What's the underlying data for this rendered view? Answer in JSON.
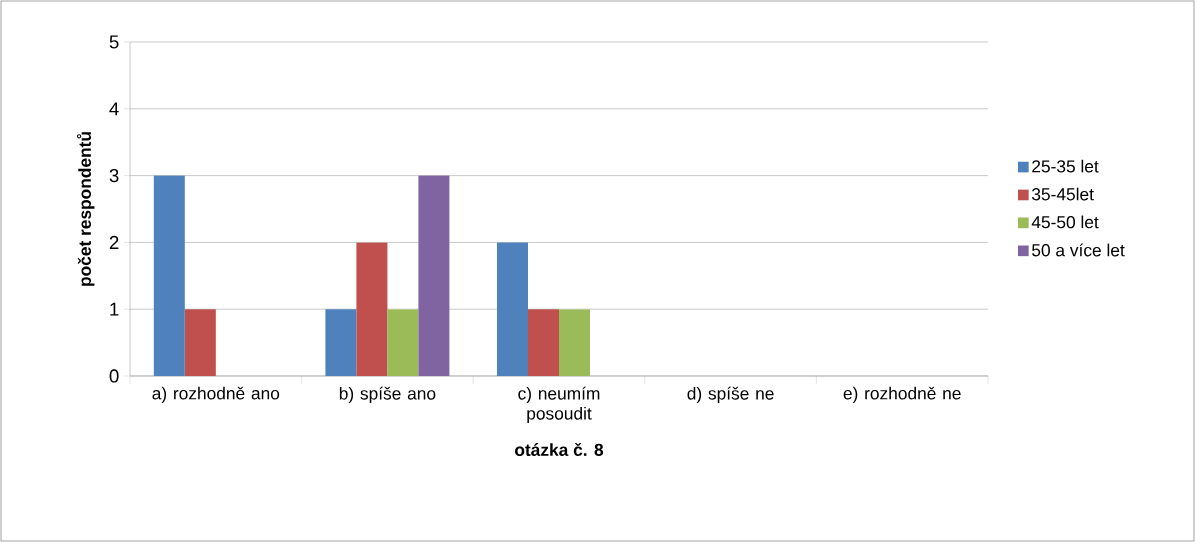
{
  "chart_data": {
    "type": "bar",
    "xlabel": "otázka č. 8",
    "ylabel": "počet respondentů",
    "categories": [
      "a) rozhodně ano",
      "b) spíše ano",
      "c) neumím posoudit",
      "d) spíše ne",
      "e) rozhodně ne"
    ],
    "series": [
      {
        "name": "25-35 let",
        "color": "#4f81bd",
        "values": [
          3,
          1,
          2,
          0,
          0
        ]
      },
      {
        "name": "35-45let",
        "color": "#c0504d",
        "values": [
          1,
          2,
          1,
          0,
          0
        ]
      },
      {
        "name": "45-50 let",
        "color": "#9bbb59",
        "values": [
          0,
          1,
          1,
          0,
          0
        ]
      },
      {
        "name": "50 a více let",
        "color": "#8064a2",
        "values": [
          0,
          3,
          0,
          0,
          0
        ]
      }
    ],
    "ylim": [
      0,
      5
    ],
    "yticks": [
      0,
      1,
      2,
      3,
      4,
      5
    ],
    "grid": "y",
    "legend": "right"
  }
}
